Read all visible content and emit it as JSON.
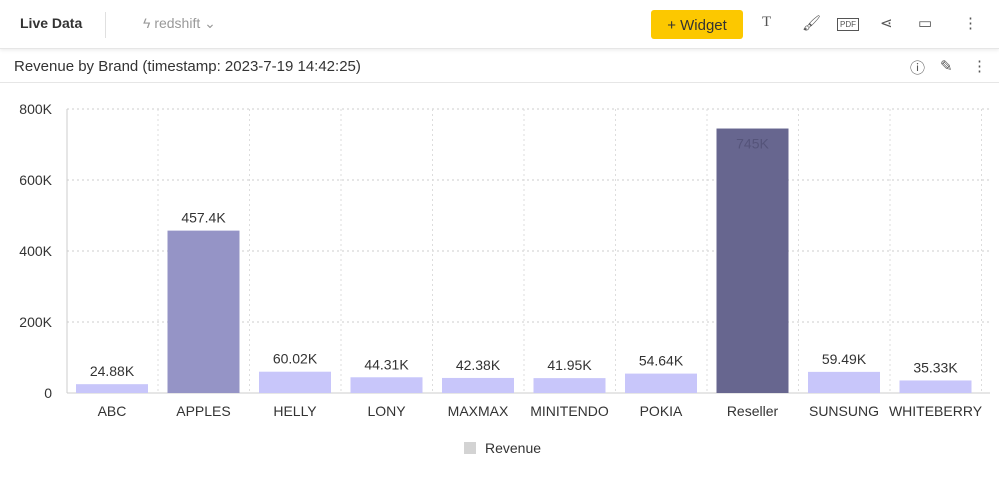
{
  "header": {
    "title": "Live Data",
    "source": "redshift",
    "widget_label": "+ Widget",
    "pdf": "PDF"
  },
  "widget": {
    "title": "Revenue by Brand (timestamp: 2023-7-19 14:42:25)"
  },
  "chart_data": {
    "type": "bar",
    "title": "Revenue by Brand",
    "categories": [
      "ABC",
      "APPLES",
      "HELLY",
      "LONY",
      "MAXMAX",
      "MINITENDO",
      "POKIA",
      "Reseller",
      "SUNSUNG",
      "WHITEBERRY"
    ],
    "values": [
      24880,
      457400,
      60020,
      44310,
      42380,
      41950,
      54640,
      745000,
      59490,
      35330
    ],
    "labels": [
      "24.88K",
      "457.4K",
      "60.02K",
      "44.31K",
      "42.38K",
      "41.95K",
      "54.64K",
      "745K",
      "59.49K",
      "35.33K"
    ],
    "colors": [
      "#c8c6fa",
      "#9594c6",
      "#c8c6fa",
      "#c8c6fa",
      "#c8c6fa",
      "#c8c6fa",
      "#c8c6fa",
      "#67668f",
      "#c8c6fa",
      "#c8c6fa"
    ],
    "yticks": [
      0,
      200000,
      400000,
      600000,
      800000
    ],
    "ytick_labels": [
      "0",
      "200K",
      "400K",
      "600K",
      "800K"
    ],
    "ylim": [
      0,
      800000
    ],
    "legend": {
      "label": "Revenue",
      "position": "bottom"
    }
  }
}
